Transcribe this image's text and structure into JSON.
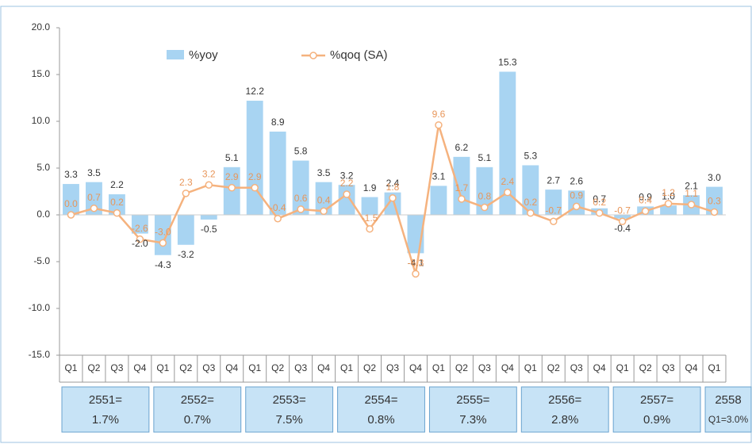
{
  "chart_data": {
    "type": "bar_line",
    "categories": [
      "Q1",
      "Q2",
      "Q3",
      "Q4",
      "Q1",
      "Q2",
      "Q3",
      "Q4",
      "Q1",
      "Q2",
      "Q3",
      "Q4",
      "Q1",
      "Q2",
      "Q3",
      "Q4",
      "Q1",
      "Q2",
      "Q3",
      "Q4",
      "Q1",
      "Q2",
      "Q3",
      "Q4",
      "Q1",
      "Q2",
      "Q3",
      "Q4",
      "Q1"
    ],
    "series": [
      {
        "name": "%yoy",
        "color": "#a8d4f2",
        "values": [
          3.3,
          3.5,
          2.2,
          -2.0,
          -4.3,
          -3.2,
          -0.5,
          5.1,
          12.2,
          8.9,
          5.8,
          3.5,
          3.2,
          1.9,
          2.4,
          -4.1,
          3.1,
          6.2,
          5.1,
          15.3,
          5.3,
          2.7,
          2.6,
          0.7,
          -0.4,
          0.9,
          1.0,
          2.1,
          3.0
        ],
        "value_labels": [
          "3.3",
          "3.5",
          "2.2",
          "-2.0",
          "-4.3",
          "-3.2",
          "-0.5",
          "5.1",
          "12.2",
          "8.9",
          "5.8",
          "3.5",
          "3.2",
          "1.9",
          "2.4",
          "-4.1",
          "3.1",
          "6.2",
          "5.1",
          "15.3",
          "5.3",
          "2.7",
          "2.6",
          "0.7",
          "-0.4",
          "0.9",
          "1.0",
          "2.1",
          "3.0"
        ]
      },
      {
        "name": "%qoq (SA)",
        "color": "#f5b27e",
        "values": [
          0.0,
          0.7,
          0.2,
          -2.6,
          -3.0,
          2.3,
          3.2,
          2.9,
          2.9,
          -0.4,
          0.6,
          0.4,
          2.2,
          -1.5,
          1.8,
          -6.3,
          9.6,
          1.7,
          0.8,
          2.4,
          0.2,
          -0.7,
          0.9,
          0.2,
          -0.7,
          0.4,
          1.2,
          1.1,
          0.3
        ],
        "value_labels": [
          "0.0",
          "0.7",
          "0.2",
          "-2.6",
          "-3.0",
          "2.3",
          "3.2",
          "2.9",
          "2.9",
          "-0.4",
          "0.6",
          "0.4",
          "2.2",
          "-1.5",
          "1.8",
          "-6.3",
          "9.6",
          "1.7",
          "0.8",
          "2.4",
          "0.2",
          "-0.7",
          "0.9",
          "0.2",
          "-0.7",
          "0.4",
          "1.2",
          "1.1",
          "0.3"
        ]
      }
    ],
    "ylim": [
      -15,
      20
    ],
    "yticks": [
      {
        "value": -15,
        "label": "-15.0"
      },
      {
        "value": -10,
        "label": "-10.0"
      },
      {
        "value": -5,
        "label": "-5.0"
      },
      {
        "value": 0,
        "label": "0.0"
      },
      {
        "value": 5,
        "label": "5.0"
      },
      {
        "value": 10,
        "label": "10.0"
      },
      {
        "value": 15,
        "label": "15.0"
      },
      {
        "value": 20,
        "label": "20.0"
      }
    ],
    "grid": false,
    "year_groups": [
      {
        "year": "2551=",
        "growth": "1.7%"
      },
      {
        "year": "2552=",
        "growth": "0.7%"
      },
      {
        "year": "2553=",
        "growth": "7.5%"
      },
      {
        "year": "2554=",
        "growth": "0.8%"
      },
      {
        "year": "2555=",
        "growth": "7.3%"
      },
      {
        "year": "2556=",
        "growth": "2.8%"
      },
      {
        "year": "2557=",
        "growth": "0.9%"
      },
      {
        "year": "2558",
        "growth": "Q1=3.0%"
      }
    ]
  }
}
